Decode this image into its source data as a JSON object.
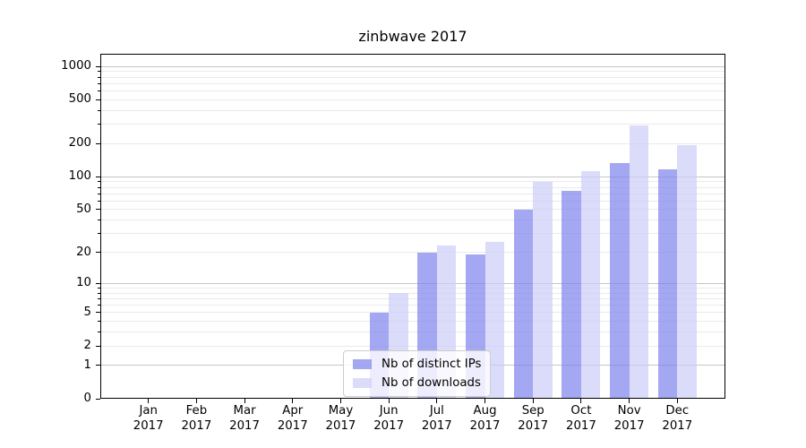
{
  "chart_data": {
    "type": "bar",
    "title": "zinbwave 2017",
    "categories": [
      "Jan 2017",
      "Feb 2017",
      "Mar 2017",
      "Apr 2017",
      "May 2017",
      "Jun 2017",
      "Jul 2017",
      "Aug 2017",
      "Sep 2017",
      "Oct 2017",
      "Nov 2017",
      "Dec 2017"
    ],
    "series": [
      {
        "name": "Nb of distinct IPs",
        "color": "rgba(125,129,236,0.7)",
        "solid_color": "#a4a7f2",
        "values": [
          0,
          0,
          0,
          0,
          0,
          5,
          20,
          19,
          50,
          75,
          134,
          116
        ]
      },
      {
        "name": "Nb of downloads",
        "color": "rgba(204,205,248,0.7)",
        "solid_color": "#dbdcfa",
        "values": [
          0,
          0,
          0,
          0,
          0,
          8,
          23,
          25,
          90,
          113,
          290,
          193
        ]
      }
    ],
    "xlabel": "",
    "ylabel": "",
    "yscale": "log1p",
    "y_ticks": [
      0,
      1,
      2,
      5,
      10,
      20,
      50,
      100,
      200,
      500,
      1000
    ],
    "ylim": [
      0,
      1302
    ],
    "grid": true,
    "legend_position": "inside-bottom-center",
    "colors": {
      "grid_major": "#c6c6c6",
      "grid_minor": "#eaeaea",
      "spine": "#000000",
      "text": "#000000",
      "background": "#ffffff",
      "legend_bg": "rgba(255,255,255,0.8)",
      "legend_border": "#cccccc"
    }
  }
}
